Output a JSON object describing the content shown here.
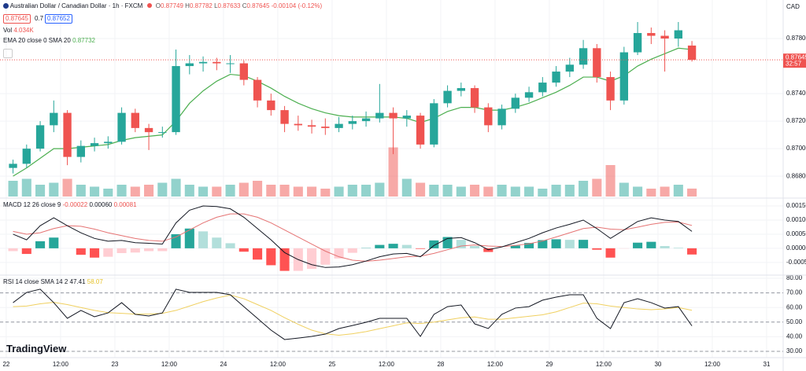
{
  "legend": {
    "symbol": "Australian Dollar / Canadian Dollar · 1h · FXCM",
    "open_label": "O",
    "open": "0.87749",
    "high_label": "H",
    "high": "0.87782",
    "low_label": "L",
    "low": "0.87633",
    "close_label": "C",
    "close": "0.87645",
    "change": "-0.00104 (-0.12%)"
  },
  "trade": {
    "sell": "0.87645",
    "spread": "0.7",
    "buy": "0.87652"
  },
  "indicators": {
    "volume": {
      "label": "Vol",
      "value": "4.034K"
    },
    "ema": {
      "label": "EMA 20 close 0 SMA 20",
      "value": "0.87732"
    },
    "macd": {
      "label": "MACD 12 26 close 9",
      "values": [
        "-0.00022",
        "0.00060",
        "0.00081"
      ]
    },
    "rsi": {
      "label": "RSI 14 close SMA 14 2",
      "values": [
        "47.41",
        "58.07"
      ]
    }
  },
  "currency": "CAD",
  "price_label": {
    "price": "0.87645",
    "countdown": "32:57"
  },
  "logo": "TradingView",
  "chart_data": [
    {
      "type": "candlestick",
      "up_color": "#26a69a",
      "down_color": "#ef5350",
      "ema_color": "#4caf50",
      "ohlc": [
        [
          0.8686,
          0.8692,
          0.8682,
          0.8689
        ],
        [
          0.8689,
          0.8703,
          0.8686,
          0.87
        ],
        [
          0.87,
          0.872,
          0.8698,
          0.8717
        ],
        [
          0.8717,
          0.8735,
          0.8712,
          0.8726
        ],
        [
          0.8726,
          0.8728,
          0.8688,
          0.8694
        ],
        [
          0.8694,
          0.8706,
          0.869,
          0.8702
        ],
        [
          0.8702,
          0.8708,
          0.8698,
          0.8704
        ],
        [
          0.8704,
          0.8709,
          0.87,
          0.8705
        ],
        [
          0.8705,
          0.873,
          0.8703,
          0.8726
        ],
        [
          0.8726,
          0.8729,
          0.8712,
          0.8715
        ],
        [
          0.8715,
          0.8718,
          0.8699,
          0.8712
        ],
        [
          0.8712,
          0.8716,
          0.8708,
          0.8712
        ],
        [
          0.8712,
          0.8772,
          0.871,
          0.876
        ],
        [
          0.876,
          0.8768,
          0.8754,
          0.8762
        ],
        [
          0.8762,
          0.8767,
          0.8756,
          0.8763
        ],
        [
          0.8763,
          0.8766,
          0.8757,
          0.8762
        ],
        [
          0.8762,
          0.8768,
          0.8755,
          0.8762
        ],
        [
          0.8762,
          0.8764,
          0.8746,
          0.875
        ],
        [
          0.875,
          0.8752,
          0.873,
          0.8735
        ],
        [
          0.8735,
          0.874,
          0.8724,
          0.8728
        ],
        [
          0.8728,
          0.8731,
          0.8712,
          0.8718
        ],
        [
          0.8718,
          0.8724,
          0.8713,
          0.8717
        ],
        [
          0.8717,
          0.8721,
          0.8711,
          0.8716
        ],
        [
          0.8716,
          0.8722,
          0.871,
          0.8715
        ],
        [
          0.8715,
          0.8723,
          0.8712,
          0.8718
        ],
        [
          0.8718,
          0.8724,
          0.8714,
          0.872
        ],
        [
          0.872,
          0.8727,
          0.8716,
          0.8722
        ],
        [
          0.8722,
          0.8747,
          0.8719,
          0.8726
        ],
        [
          0.8726,
          0.873,
          0.8696,
          0.8722
        ],
        [
          0.8722,
          0.8728,
          0.8716,
          0.8724
        ],
        [
          0.8724,
          0.8726,
          0.87,
          0.8703
        ],
        [
          0.8703,
          0.8736,
          0.8701,
          0.8733
        ],
        [
          0.8733,
          0.8746,
          0.873,
          0.8742
        ],
        [
          0.8742,
          0.8748,
          0.8738,
          0.8744
        ],
        [
          0.8744,
          0.8746,
          0.8726,
          0.873
        ],
        [
          0.873,
          0.8733,
          0.8712,
          0.8717
        ],
        [
          0.8717,
          0.8732,
          0.8714,
          0.8729
        ],
        [
          0.8729,
          0.874,
          0.8726,
          0.8737
        ],
        [
          0.8737,
          0.8745,
          0.8734,
          0.8741
        ],
        [
          0.8741,
          0.8752,
          0.8738,
          0.8748
        ],
        [
          0.8748,
          0.876,
          0.8745,
          0.8756
        ],
        [
          0.8756,
          0.8766,
          0.8752,
          0.8761
        ],
        [
          0.8761,
          0.8779,
          0.8758,
          0.8773
        ],
        [
          0.8773,
          0.8776,
          0.8748,
          0.8752
        ],
        [
          0.8752,
          0.8756,
          0.8728,
          0.8735
        ],
        [
          0.8735,
          0.8774,
          0.8732,
          0.877
        ],
        [
          0.877,
          0.8792,
          0.8768,
          0.8784
        ],
        [
          0.8784,
          0.8788,
          0.8776,
          0.8782
        ],
        [
          0.8782,
          0.8786,
          0.8756,
          0.878
        ],
        [
          0.878,
          0.8792,
          0.8774,
          0.8786
        ],
        [
          0.87749,
          0.87782,
          0.87633,
          0.87645
        ]
      ],
      "ema": [
        0.868,
        0.8686,
        0.8693,
        0.87,
        0.87,
        0.8701,
        0.8702,
        0.8703,
        0.8706,
        0.8708,
        0.8709,
        0.871,
        0.872,
        0.8733,
        0.8742,
        0.8749,
        0.8754,
        0.8753,
        0.8749,
        0.8744,
        0.8738,
        0.8733,
        0.8729,
        0.8726,
        0.8724,
        0.8723,
        0.8723,
        0.8723,
        0.8723,
        0.8722,
        0.8719,
        0.8722,
        0.8727,
        0.873,
        0.873,
        0.8728,
        0.8728,
        0.873,
        0.8733,
        0.8737,
        0.8741,
        0.8746,
        0.8752,
        0.8752,
        0.8749,
        0.8753,
        0.876,
        0.8765,
        0.8769,
        0.8773,
        0.8772
      ],
      "volume": [
        8,
        9,
        6,
        7,
        9,
        6,
        5,
        4,
        6,
        5,
        6,
        7,
        9,
        6,
        5,
        5,
        6,
        7,
        8,
        6,
        6,
        5,
        5,
        4,
        5,
        6,
        6,
        7,
        25,
        9,
        7,
        6,
        6,
        5,
        6,
        5,
        6,
        5,
        5,
        4,
        6,
        6,
        8,
        9,
        16,
        7,
        5,
        4,
        5,
        6,
        4.034
      ],
      "volume_lim": [
        0,
        40
      ],
      "ylim": [
        0.86641,
        0.8808
      ],
      "yticks": [
        {
          "value": 0.878,
          "label": "0.87800"
        },
        {
          "value": 0.874,
          "label": "0.87400"
        },
        {
          "value": 0.872,
          "label": "0.87200"
        },
        {
          "value": 0.87,
          "label": "0.87000"
        },
        {
          "value": 0.868,
          "label": "0.86800"
        }
      ]
    },
    {
      "type": "macd",
      "macd_color": "#131722",
      "signal_color": "#e57373",
      "hist_colors": [
        "#26a69a",
        "#b2dfdb",
        "#ff5252",
        "#ffcdd2"
      ],
      "macd": [
        0.0005,
        0.0003,
        0.0008,
        0.00108,
        0.0008,
        0.00055,
        0.00035,
        0.00025,
        0.00028,
        0.0002,
        0.00018,
        0.00015,
        0.0009,
        0.00135,
        0.0015,
        0.00148,
        0.0014,
        0.0011,
        0.0007,
        0.0003,
        -0.00015,
        -0.0004,
        -0.00058,
        -0.00068,
        -0.00066,
        -0.00058,
        -0.00045,
        -0.0003,
        -0.0002,
        -0.00018,
        -0.0003,
        0.0001,
        0.00035,
        0.00038,
        0.0002,
        -5e-05,
        5e-05,
        0.0002,
        0.00035,
        0.00055,
        0.00072,
        0.00085,
        0.001,
        0.0007,
        0.00035,
        0.00065,
        0.00095,
        0.00108,
        0.001,
        0.00095,
        0.0006
      ],
      "signal": [
        0.0006,
        0.0005,
        0.00055,
        0.0007,
        0.0008,
        0.00078,
        0.00068,
        0.00055,
        0.00045,
        0.00035,
        0.00028,
        0.00025,
        0.0004,
        0.00065,
        0.0009,
        0.0011,
        0.00122,
        0.00122,
        0.0011,
        0.0009,
        0.00065,
        0.0004,
        0.00015,
        -0.0001,
        -0.0003,
        -0.00042,
        -0.00046,
        -0.00042,
        -0.00036,
        -0.0003,
        -0.00028,
        -0.00018,
        -5e-05,
        8e-05,
        0.00012,
        8e-05,
        6e-05,
        0.0001,
        0.00016,
        0.00026,
        0.0004,
        0.00055,
        0.0007,
        0.00075,
        0.00068,
        0.00066,
        0.00075,
        0.00085,
        0.00092,
        0.00093,
        0.00081
      ],
      "histogram": [
        -0.0001,
        -0.0002,
        0.00025,
        0.00038,
        0,
        -0.00023,
        -0.00033,
        -0.0003,
        -0.00017,
        -0.00015,
        -0.0001,
        -0.0001,
        0.0005,
        0.0007,
        0.0006,
        0.00038,
        0.00018,
        -0.00012,
        -0.0004,
        -0.0006,
        -0.0008,
        -0.0008,
        -0.00073,
        -0.00058,
        -0.00036,
        -0.00016,
        1e-05,
        0.00012,
        0.00016,
        0.00012,
        -2e-05,
        0.00028,
        0.0004,
        0.0003,
        8e-05,
        -0.00013,
        -1e-05,
        0.0001,
        0.00019,
        0.00029,
        0.00032,
        0.0003,
        0.0003,
        -5e-05,
        -0.00033,
        -1e-05,
        0.0002,
        0.00023,
        8e-05,
        2e-05,
        -0.00022
      ],
      "ylim": [
        -0.00095,
        0.00178
      ],
      "yticks": [
        {
          "value": 0.0015,
          "label": "0.00150"
        },
        {
          "value": 0.001,
          "label": "0.00100"
        },
        {
          "value": 0.0005,
          "label": "0.00050"
        },
        {
          "value": 0,
          "label": "0.00000"
        },
        {
          "value": -0.0005,
          "label": "-0.00050"
        }
      ]
    },
    {
      "type": "line",
      "series": [
        {
          "color": "#131722",
          "values": [
            63.3,
            70.3,
            72.5,
            63.3,
            52.6,
            58,
            53.7,
            56.3,
            63.3,
            55.3,
            54.2,
            56.3,
            72.5,
            70.3,
            70.3,
            70.3,
            68.7,
            60.6,
            52.6,
            44.5,
            38.1,
            39.1,
            40.2,
            41.8,
            45.6,
            47.7,
            49.9,
            52.6,
            52.6,
            52.6,
            40.2,
            55.3,
            60.6,
            61.7,
            48.8,
            45.6,
            55.3,
            59.6,
            60.6,
            65,
            67.1,
            68.7,
            68.7,
            52.6,
            45.6,
            63.3,
            66,
            63.3,
            59.6,
            60.6,
            47.41
          ]
        },
        {
          "color": "#f0d060",
          "values": [
            60.6,
            61,
            62.5,
            63.5,
            62,
            60,
            58,
            56.5,
            56,
            55.5,
            55.5,
            56,
            58,
            61,
            64,
            66.5,
            68.5,
            66,
            62,
            58,
            53,
            48.5,
            44.5,
            42,
            41,
            42,
            43.5,
            45.5,
            47.5,
            49.5,
            49,
            50,
            51.5,
            53,
            53.5,
            52,
            52,
            53,
            54,
            55,
            57,
            60,
            63,
            62.5,
            61,
            60,
            59,
            58.5,
            59,
            60,
            58.07
          ]
        }
      ],
      "levels": [
        70,
        50,
        30
      ],
      "ylim": [
        25.7,
        82.15
      ],
      "yticks": [
        {
          "value": 80,
          "label": "80.00"
        },
        {
          "value": 70,
          "label": "70.00"
        },
        {
          "value": 60,
          "label": "60.00"
        },
        {
          "value": 50,
          "label": "50.00"
        },
        {
          "value": 40,
          "label": "40.00"
        },
        {
          "value": 30,
          "label": "30.00"
        }
      ],
      "xlim": [
        -0.46,
        57.22
      ],
      "xticks": [
        {
          "value": 0,
          "label": "22"
        },
        {
          "value": 4,
          "label": "12:00"
        },
        {
          "value": 8,
          "label": "23"
        },
        {
          "value": 12,
          "label": "12:00"
        },
        {
          "value": 16,
          "label": "24"
        },
        {
          "value": 20,
          "label": "12:00"
        },
        {
          "value": 24,
          "label": "25"
        },
        {
          "value": 28,
          "label": "12:00"
        },
        {
          "value": 32,
          "label": "28"
        },
        {
          "value": 36,
          "label": "12:00"
        },
        {
          "value": 40,
          "label": "29"
        },
        {
          "value": 44,
          "label": "12:00"
        },
        {
          "value": 48,
          "label": "30"
        },
        {
          "value": 52,
          "label": "12:00"
        },
        {
          "value": 56,
          "label": "31"
        }
      ]
    }
  ]
}
